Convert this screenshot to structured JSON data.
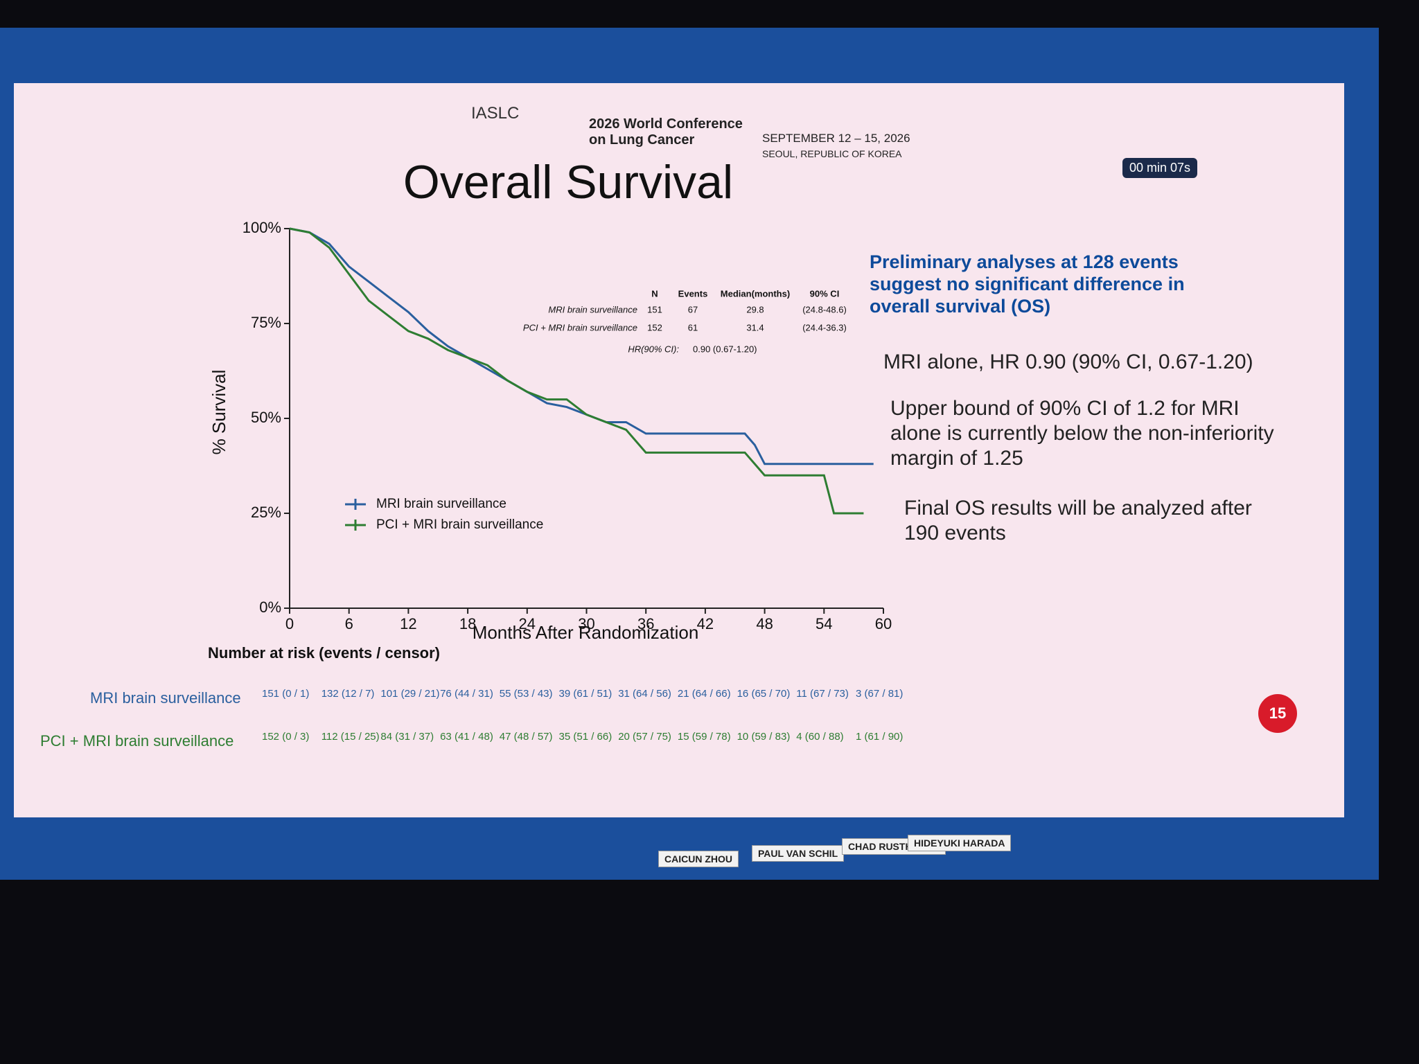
{
  "header": {
    "society": "IASLC",
    "conference": "2026 World Conference on Lung Cancer",
    "dates": "SEPTEMBER 12 – 15, 2026",
    "location": "SEOUL, REPUBLIC OF KOREA",
    "timer": "00 min 07s",
    "page": "15"
  },
  "chart_data": {
    "type": "line",
    "title": "Overall Survival",
    "x_label": "Months After Randomization",
    "y_label": "% Survival",
    "x": [
      0,
      2,
      4,
      6,
      8,
      10,
      12,
      14,
      16,
      18,
      20,
      22,
      24,
      26,
      28,
      30,
      32,
      34,
      36,
      38,
      40,
      42,
      44,
      46,
      47,
      48,
      50,
      52,
      54,
      55,
      56,
      58,
      59
    ],
    "series": [
      {
        "name": "MRI brain surveillance",
        "color": "#2a5f9e",
        "values": [
          100,
          99,
          96,
          90,
          86,
          82,
          78,
          73,
          69,
          66,
          63,
          60,
          57,
          54,
          53,
          51,
          49,
          49,
          46,
          46,
          46,
          46,
          46,
          46,
          43,
          38,
          38,
          38,
          38,
          38,
          38,
          38,
          38
        ]
      },
      {
        "name": "PCI + MRI brain surveillance",
        "color": "#2e7d32",
        "values": [
          100,
          99,
          95,
          88,
          81,
          77,
          73,
          71,
          68,
          66,
          64,
          60,
          57,
          55,
          55,
          51,
          49,
          47,
          41,
          41,
          41,
          41,
          41,
          41,
          38,
          35,
          35,
          35,
          35,
          25,
          25,
          25,
          null
        ]
      }
    ],
    "xlim": [
      0,
      60
    ],
    "xticks": [
      0,
      6,
      12,
      18,
      24,
      30,
      36,
      42,
      48,
      54,
      60
    ],
    "ylim": [
      0,
      100
    ],
    "yticks": [
      {
        "value": 0,
        "label": "0%"
      },
      {
        "value": 25,
        "label": "25%"
      },
      {
        "value": 50,
        "label": "50%"
      },
      {
        "value": 75,
        "label": "75%"
      },
      {
        "value": 100,
        "label": "100%"
      }
    ],
    "legend": "lower left",
    "stats_table": {
      "columns": [
        "N",
        "Events",
        "Median(months)",
        "90% CI"
      ],
      "rows": [
        [
          "MRI brain surveillance",
          "151",
          "67",
          "29.8",
          "(24.8-48.6)"
        ],
        [
          "PCI + MRI brain surveillance",
          "152",
          "61",
          "31.4",
          "(24.4-36.3)"
        ]
      ],
      "hr_label": "HR(90% CI):",
      "hr_value": "0.90 (0.67-1.20)"
    }
  },
  "risk_table": {
    "title": "Number at risk (events / censor)",
    "rows": [
      {
        "name": "MRI brain surveillance",
        "values": [
          "151 (0 / 1)",
          "132 (12 / 7)",
          "101 (29 / 21)",
          "76 (44 / 31)",
          "55 (53 / 43)",
          "39 (61 / 51)",
          "31 (64 / 56)",
          "21 (64 / 66)",
          "16 (65 / 70)",
          "11 (67 / 73)",
          "3 (67 / 81)"
        ]
      },
      {
        "name": "PCI + MRI brain surveillance",
        "values": [
          "152 (0 / 3)",
          "112 (15 / 25)",
          "84 (31 / 37)",
          "63 (41 / 48)",
          "47 (48 / 57)",
          "35 (51 / 66)",
          "20 (57 / 75)",
          "15 (59 / 78)",
          "10 (59 / 83)",
          "4 (60 / 88)",
          "1 (61 / 90)"
        ]
      }
    ]
  },
  "notes": {
    "headline": "Preliminary analyses at 128 events suggest no significant difference in overall survival (OS)",
    "bullets": [
      "MRI alone, HR 0.90 (90% CI, 0.67-1.20)",
      "Upper bound of 90% CI of 1.2 for MRI alone is currently below the non-inferiority margin of 1.25",
      "Final OS results will be analyzed after 190 events"
    ]
  },
  "panel": {
    "names": [
      "CAICUN ZHOU",
      "PAUL VAN SCHIL",
      "CHAD RUSTHOVEN",
      "HIDEYUKI HARADA"
    ]
  }
}
